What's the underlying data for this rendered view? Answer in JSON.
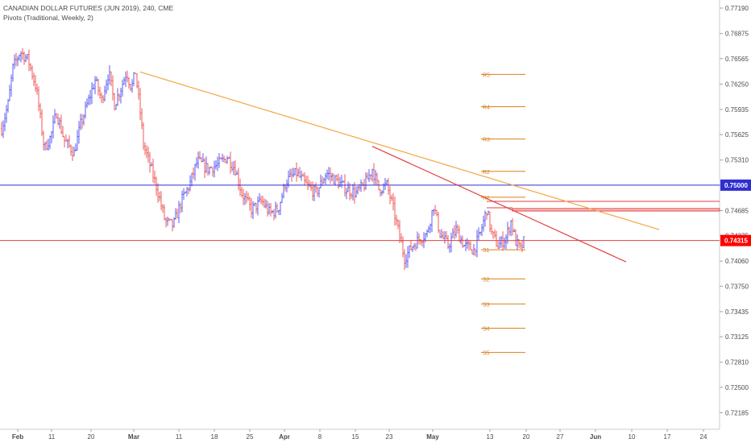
{
  "legend": {
    "symbol_line": "CANADIAN DOLLAR FUTURES (JUN 2019), 240, CME",
    "indicator_line": "Pivots (Traditional, Weekly, 2)"
  },
  "colors": {
    "up": "#5b5cf0",
    "down": "#ef5a5a",
    "pivot_label": "#d9801a",
    "trendline_orange": "#f5a542",
    "trendline_red": "#e04040",
    "level_blue": "#2e2ed1",
    "level_red": "#e04040",
    "price_tag": "#ff0000",
    "blue_tag": "#2e2ed1"
  },
  "chart_data": {
    "type": "candlestick",
    "title": "CANADIAN DOLLAR FUTURES (JUN 2019), 240, CME",
    "ylim": [
      0.7203,
      0.7725
    ],
    "y_ticks": [
      "0.77190",
      "0.76875",
      "0.76565",
      "0.76250",
      "0.75935",
      "0.75625",
      "0.75310",
      "0.75000",
      "0.74685",
      "0.74375",
      "0.74060",
      "0.73750",
      "0.73435",
      "0.73125",
      "0.72810",
      "0.72500",
      "0.72185"
    ],
    "x_ticks": [
      "Feb",
      "11",
      "20",
      "Mar",
      "11",
      "18",
      "25",
      "Apr",
      "8",
      "15",
      "23",
      "May",
      "13",
      "20",
      "27",
      "Jun",
      "10",
      "17",
      "24"
    ],
    "x_tick_bold": [
      "Feb",
      "Mar",
      "Apr",
      "May",
      "Jun"
    ],
    "price_path": [
      {
        "x": 2,
        "y": 0.757
      },
      {
        "x": 10,
        "y": 0.76
      },
      {
        "x": 16,
        "y": 0.7645
      },
      {
        "x": 25,
        "y": 0.7665
      },
      {
        "x": 35,
        "y": 0.7655
      },
      {
        "x": 45,
        "y": 0.762
      },
      {
        "x": 55,
        "y": 0.7545
      },
      {
        "x": 63,
        "y": 0.756
      },
      {
        "x": 70,
        "y": 0.759
      },
      {
        "x": 80,
        "y": 0.7555
      },
      {
        "x": 92,
        "y": 0.754
      },
      {
        "x": 100,
        "y": 0.7575
      },
      {
        "x": 110,
        "y": 0.7605
      },
      {
        "x": 118,
        "y": 0.763
      },
      {
        "x": 126,
        "y": 0.7605
      },
      {
        "x": 135,
        "y": 0.764
      },
      {
        "x": 142,
        "y": 0.76
      },
      {
        "x": 150,
        "y": 0.762
      },
      {
        "x": 157,
        "y": 0.764
      },
      {
        "x": 163,
        "y": 0.762
      },
      {
        "x": 168,
        "y": 0.764
      },
      {
        "x": 174,
        "y": 0.759
      },
      {
        "x": 178,
        "y": 0.755
      },
      {
        "x": 186,
        "y": 0.7525
      },
      {
        "x": 195,
        "y": 0.7495
      },
      {
        "x": 205,
        "y": 0.7455
      },
      {
        "x": 215,
        "y": 0.745
      },
      {
        "x": 225,
        "y": 0.748
      },
      {
        "x": 235,
        "y": 0.75
      },
      {
        "x": 245,
        "y": 0.753
      },
      {
        "x": 258,
        "y": 0.752
      },
      {
        "x": 270,
        "y": 0.7525
      },
      {
        "x": 282,
        "y": 0.7535
      },
      {
        "x": 292,
        "y": 0.752
      },
      {
        "x": 300,
        "y": 0.749
      },
      {
        "x": 312,
        "y": 0.747
      },
      {
        "x": 325,
        "y": 0.748
      },
      {
        "x": 335,
        "y": 0.7465
      },
      {
        "x": 345,
        "y": 0.747
      },
      {
        "x": 355,
        "y": 0.7505
      },
      {
        "x": 368,
        "y": 0.7515
      },
      {
        "x": 380,
        "y": 0.75
      },
      {
        "x": 392,
        "y": 0.749
      },
      {
        "x": 405,
        "y": 0.7515
      },
      {
        "x": 418,
        "y": 0.7505
      },
      {
        "x": 430,
        "y": 0.7495
      },
      {
        "x": 442,
        "y": 0.749
      },
      {
        "x": 452,
        "y": 0.75
      },
      {
        "x": 462,
        "y": 0.752
      },
      {
        "x": 470,
        "y": 0.7495
      },
      {
        "x": 480,
        "y": 0.75
      },
      {
        "x": 487,
        "y": 0.7475
      },
      {
        "x": 495,
        "y": 0.744
      },
      {
        "x": 502,
        "y": 0.741
      },
      {
        "x": 512,
        "y": 0.7425
      },
      {
        "x": 522,
        "y": 0.7435
      },
      {
        "x": 530,
        "y": 0.744
      },
      {
        "x": 538,
        "y": 0.7475
      },
      {
        "x": 546,
        "y": 0.744
      },
      {
        "x": 556,
        "y": 0.7425
      },
      {
        "x": 566,
        "y": 0.7445
      },
      {
        "x": 576,
        "y": 0.7425
      },
      {
        "x": 588,
        "y": 0.742
      },
      {
        "x": 596,
        "y": 0.744
      },
      {
        "x": 604,
        "y": 0.747
      },
      {
        "x": 610,
        "y": 0.744
      },
      {
        "x": 618,
        "y": 0.7425
      },
      {
        "x": 628,
        "y": 0.7435
      },
      {
        "x": 634,
        "y": 0.7455
      },
      {
        "x": 640,
        "y": 0.743
      },
      {
        "x": 646,
        "y": 0.742
      },
      {
        "x": 650,
        "y": 0.743
      }
    ],
    "pivots": [
      {
        "label": "R5",
        "value": 0.7637
      },
      {
        "label": "R4",
        "value": 0.7597
      },
      {
        "label": "R3",
        "value": 0.7557
      },
      {
        "label": "R2",
        "value": 0.7517
      },
      {
        "label": "R1",
        "value": 0.7485
      },
      {
        "label": "S1",
        "value": 0.742
      },
      {
        "label": "S2",
        "value": 0.7384
      },
      {
        "label": "S3",
        "value": 0.7353
      },
      {
        "label": "S4",
        "value": 0.7323
      },
      {
        "label": "S5",
        "value": 0.7293
      }
    ],
    "horizontal_levels": [
      {
        "value": 0.75,
        "label": "0.75000",
        "color": "#2e2ed1"
      },
      {
        "value": 0.74315,
        "label": "0.74315",
        "color": "#e04040"
      }
    ],
    "zone": {
      "from": 0.7468,
      "to": 0.7471
    },
    "zone2": {
      "from": 0.748,
      "to": 0.7481
    },
    "price_tag": {
      "value": 0.74315,
      "label": "0.74315",
      "hidden_label": "0.74375"
    }
  }
}
